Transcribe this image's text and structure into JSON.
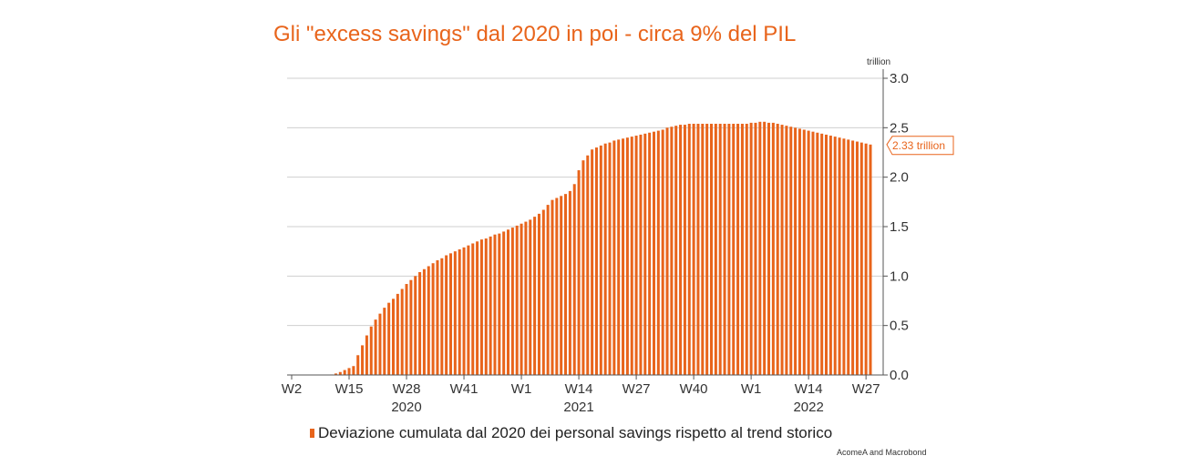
{
  "chart_data": {
    "type": "bar",
    "title": "Gli \"excess savings\" dal 2020 in poi - circa 9% del PIL",
    "unit": "trillion",
    "ylim": [
      0,
      3
    ],
    "yticks": [
      "3.0",
      "2.5",
      "2.0",
      "1.5",
      "1.0",
      "0.5",
      "0.0"
    ],
    "grid": true,
    "week_ticks": [
      "W2",
      "W15",
      "W28",
      "W41",
      "W1",
      "W14",
      "W27",
      "W40",
      "W1",
      "W14",
      "W27"
    ],
    "year_labels": [
      "2020",
      "2021",
      "2022"
    ],
    "series": [
      {
        "name": "Deviazione cumulata dal 2020 dei personal savings rispetto al trend storico",
        "color": "#e8641b",
        "start_week": "2020-W2",
        "end_week": "2022-W31",
        "values": [
          0,
          0,
          0,
          0,
          0,
          0,
          0,
          0,
          0.002,
          0.005,
          0.015,
          0.03,
          0.05,
          0.07,
          0.09,
          0.2,
          0.3,
          0.4,
          0.49,
          0.56,
          0.62,
          0.68,
          0.73,
          0.77,
          0.82,
          0.87,
          0.92,
          0.96,
          1.0,
          1.04,
          1.07,
          1.1,
          1.13,
          1.16,
          1.18,
          1.21,
          1.23,
          1.25,
          1.27,
          1.29,
          1.31,
          1.33,
          1.35,
          1.37,
          1.38,
          1.4,
          1.42,
          1.43,
          1.45,
          1.47,
          1.49,
          1.51,
          1.53,
          1.55,
          1.57,
          1.6,
          1.63,
          1.67,
          1.72,
          1.77,
          1.79,
          1.81,
          1.83,
          1.86,
          1.93,
          2.07,
          2.17,
          2.22,
          2.28,
          2.3,
          2.32,
          2.34,
          2.35,
          2.37,
          2.38,
          2.39,
          2.4,
          2.41,
          2.42,
          2.43,
          2.44,
          2.45,
          2.46,
          2.47,
          2.48,
          2.5,
          2.51,
          2.52,
          2.53,
          2.53,
          2.54,
          2.54,
          2.54,
          2.54,
          2.54,
          2.54,
          2.54,
          2.54,
          2.54,
          2.54,
          2.54,
          2.54,
          2.54,
          2.54,
          2.55,
          2.55,
          2.56,
          2.56,
          2.55,
          2.55,
          2.54,
          2.53,
          2.52,
          2.51,
          2.5,
          2.49,
          2.48,
          2.47,
          2.46,
          2.45,
          2.44,
          2.43,
          2.42,
          2.41,
          2.4,
          2.39,
          2.38,
          2.37,
          2.36,
          2.35,
          2.34,
          2.33
        ]
      }
    ],
    "last_value_label": "2.33 trillion",
    "legend_position": "bottom"
  },
  "source": "AcomeA and Macrobond"
}
